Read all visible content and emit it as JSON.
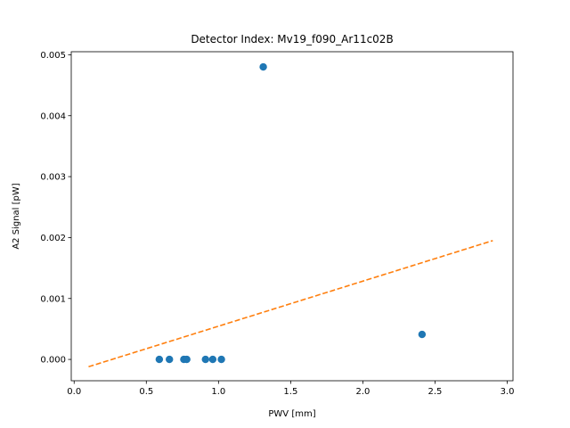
{
  "chart_data": {
    "type": "scatter",
    "title": "Detector Index: Mv19_f090_Ar11c02B",
    "xlabel": "PWV [mm]",
    "ylabel": "A2 Signal [pW]",
    "xlim": [
      -0.02,
      3.04
    ],
    "ylim": [
      -0.00035,
      0.00505
    ],
    "xticks": [
      0.0,
      0.5,
      1.0,
      1.5,
      2.0,
      2.5,
      3.0
    ],
    "xtick_labels": [
      "0.0",
      "0.5",
      "1.0",
      "1.5",
      "2.0",
      "2.5",
      "3.0"
    ],
    "yticks": [
      0.0,
      0.001,
      0.002,
      0.003,
      0.004,
      0.005
    ],
    "ytick_labels": [
      "0.000",
      "0.001",
      "0.002",
      "0.003",
      "0.004",
      "0.005"
    ],
    "grid": false,
    "series": [
      {
        "name": "measurements",
        "kind": "scatter",
        "color": "#1f77b4",
        "x": [
          0.59,
          0.66,
          0.76,
          0.78,
          0.91,
          0.96,
          1.02,
          1.31,
          2.41
        ],
        "y": [
          0.0,
          0.0,
          0.0,
          0.0,
          0.0,
          0.0,
          0.0,
          0.0048,
          0.00041
        ]
      },
      {
        "name": "fit",
        "kind": "line",
        "style": "dashed",
        "color": "#ff7f0e",
        "x": [
          0.1,
          2.9
        ],
        "y": [
          -0.00012,
          0.00195
        ]
      }
    ]
  }
}
